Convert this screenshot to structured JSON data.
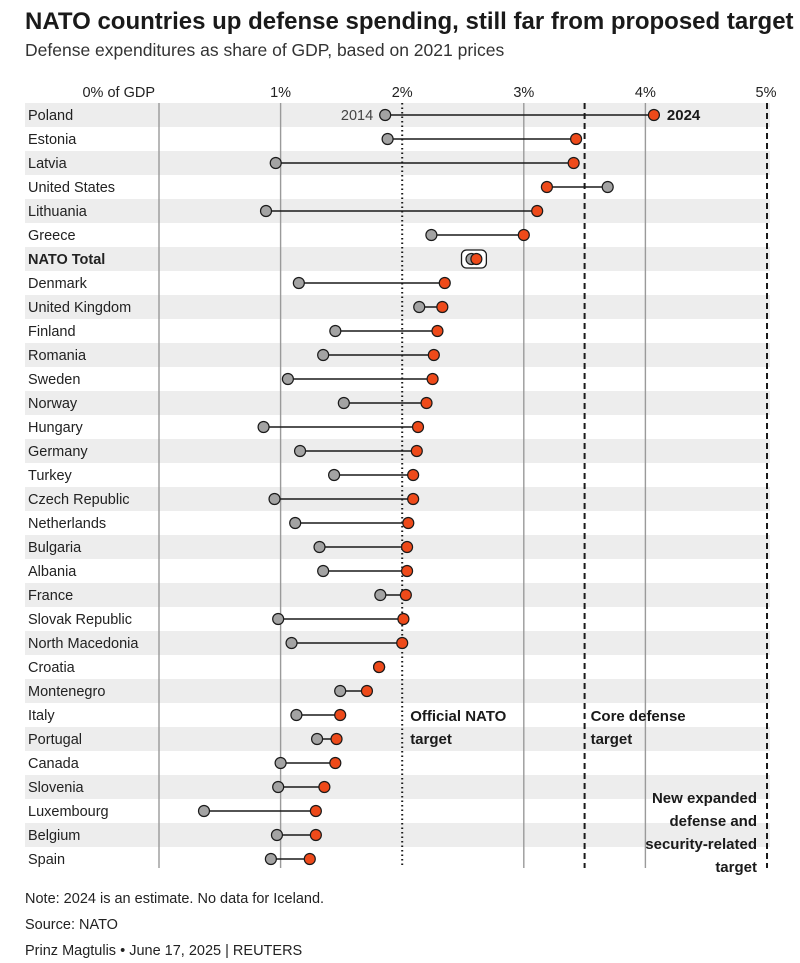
{
  "title": "NATO countries up defense spending, still far from proposed target",
  "subtitle": "Defense expenditures as share of GDP, based on 2021 prices",
  "note": "Note: 2024 is an estimate. No data for Iceland.",
  "source": "Source: NATO",
  "credit": "Prinz Magtulis • June 17, 2025 | REUTERS",
  "colors": {
    "y2014": "#a3a3a3",
    "y2024": "#ee4a1a",
    "band": "#ededed",
    "grid": "#9a9a9a",
    "text": "#222222"
  },
  "chart_data": {
    "type": "dumbbell",
    "x_axis": {
      "ticks": [
        0,
        1,
        2,
        3,
        4,
        5
      ],
      "tick_labels": [
        "0% of GDP",
        "1%",
        "2%",
        "3%",
        "4%",
        "5%"
      ],
      "range": [
        0,
        5
      ]
    },
    "series": [
      {
        "name": "2014"
      },
      {
        "name": "2024"
      }
    ],
    "series_labels": {
      "first": "2014",
      "last": "2024"
    },
    "highlight": "NATO Total",
    "reference_lines": [
      {
        "value": 2.0,
        "label": [
          "Official NATO",
          "target"
        ],
        "style": "dotted"
      },
      {
        "value": 3.5,
        "label": [
          "Core defense",
          "target"
        ],
        "style": "dashed"
      },
      {
        "value": 5.0,
        "label": [
          "New expanded",
          "defense and",
          "security-related",
          "target"
        ],
        "style": "dashed"
      }
    ],
    "categories": [
      "Poland",
      "Estonia",
      "Latvia",
      "United States",
      "Lithuania",
      "Greece",
      "NATO Total",
      "Denmark",
      "United Kingdom",
      "Finland",
      "Romania",
      "Sweden",
      "Norway",
      "Hungary",
      "Germany",
      "Turkey",
      "Czech Republic",
      "Netherlands",
      "Bulgaria",
      "Albania",
      "France",
      "Slovak Republic",
      "North Macedonia",
      "Croatia",
      "Montenegro",
      "Italy",
      "Portugal",
      "Canada",
      "Slovenia",
      "Luxembourg",
      "Belgium",
      "Spain"
    ],
    "values_2014": [
      1.86,
      1.88,
      0.96,
      3.69,
      0.88,
      2.24,
      2.57,
      1.15,
      2.14,
      1.45,
      1.35,
      1.06,
      1.52,
      0.86,
      1.16,
      1.44,
      0.95,
      1.12,
      1.32,
      1.35,
      1.82,
      0.98,
      1.09,
      1.81,
      1.49,
      1.13,
      1.3,
      1.0,
      0.98,
      0.37,
      0.97,
      0.92
    ],
    "values_2024": [
      4.07,
      3.43,
      3.41,
      3.19,
      3.11,
      3.0,
      2.61,
      2.35,
      2.33,
      2.29,
      2.26,
      2.25,
      2.2,
      2.13,
      2.12,
      2.09,
      2.09,
      2.05,
      2.04,
      2.04,
      2.03,
      2.01,
      2.0,
      1.81,
      1.71,
      1.49,
      1.46,
      1.45,
      1.36,
      1.29,
      1.29,
      1.24
    ]
  }
}
